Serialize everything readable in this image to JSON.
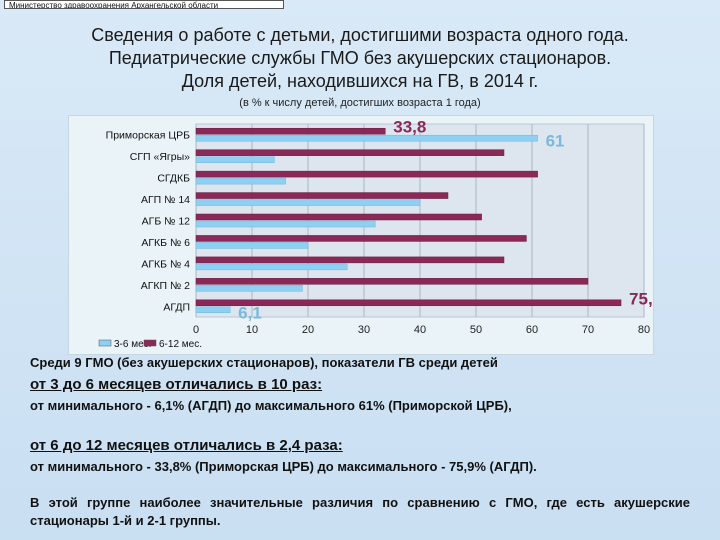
{
  "header": {
    "ministry": "Министерство здравоохранения Архангельской области",
    "title_line1": "Сведения о работе с детьми, достигшими возраста одного года.",
    "title_line2": "Педиатрические службы ГМО без акушерских стационаров.",
    "title_line3": "Доля детей, находившихся на ГВ, в 2014 г.",
    "subtitle": "(в % к числу детей, достигших возраста 1 года)"
  },
  "chart_data": {
    "type": "bar",
    "orientation": "horizontal",
    "categories": [
      "Приморская ЦРБ",
      "СГП «Ягры»",
      "СГДКБ",
      "АГП № 14",
      "АГБ № 12",
      "АГКБ № 6",
      "АГКБ № 4",
      "АГКП № 2",
      "АГДП"
    ],
    "series": [
      {
        "name": "3-6 мес.",
        "color": "#8fd0f2",
        "values": [
          61,
          14,
          16,
          40,
          32,
          20,
          27,
          19,
          6.1
        ]
      },
      {
        "name": "6-12 мес.",
        "color": "#8a2858",
        "values": [
          33.8,
          55,
          61,
          45,
          51,
          59,
          55,
          70,
          75.9
        ]
      }
    ],
    "xlim": [
      0,
      80
    ],
    "xticks": [
      "0",
      "10",
      "20",
      "30",
      "40",
      "50",
      "60",
      "70",
      "80"
    ],
    "annotations": [
      {
        "text": "33,8",
        "category": "Приморская ЦРБ",
        "series": "6-12 мес."
      },
      {
        "text": "61",
        "category": "Приморская ЦРБ",
        "series": "3-6 мес."
      },
      {
        "text": "75,9",
        "category": "АГДП",
        "series": "6-12 мес."
      },
      {
        "text": "6,1",
        "category": "АГДП",
        "series": "3-6 мес."
      }
    ],
    "grid": true,
    "legend": "bottom-left"
  },
  "text": {
    "p1": "Среди 9 ГМО (без акушерских стационаров), показатели ГВ среди детей",
    "p2": "от 3 до 6 месяцев отличались в 10 раз:",
    "p3": "от минимального - 6,1% (АГДП) до максимального 61% (Приморской ЦРБ),",
    "p4": "от 6 до 12 месяцев отличались в 2,4 раза:",
    "p5": "от минимального - 33,8% (Приморская ЦРБ) до максимального - 75,9% (АГДП).",
    "p6": "В этой группе наиболее значительные различия по сравнению с ГМО, где есть акушерские стационары 1-й и 2-1 группы."
  }
}
